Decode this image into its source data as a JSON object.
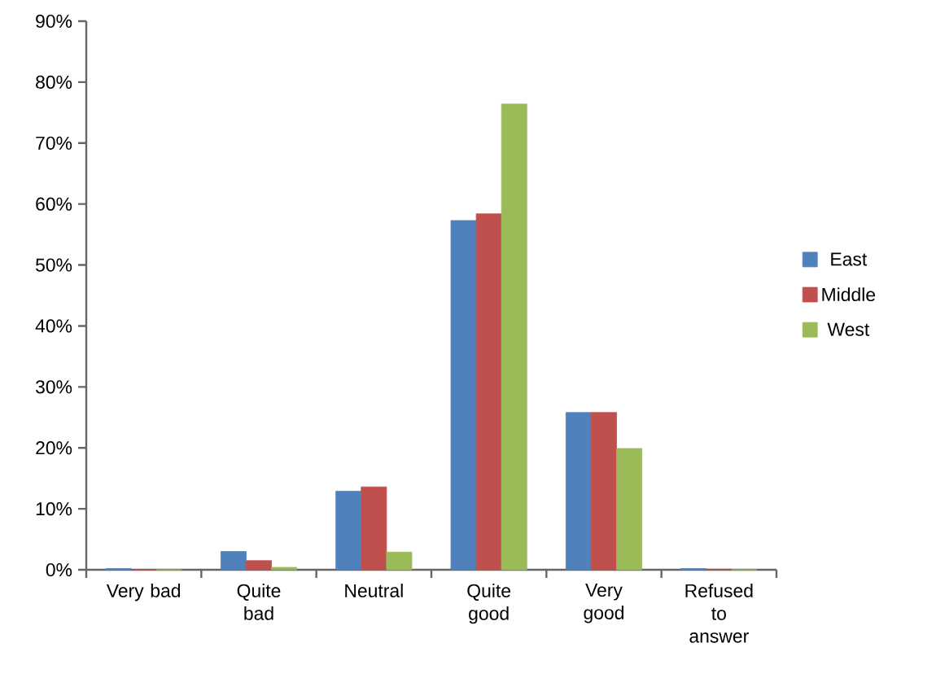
{
  "chart_data": {
    "type": "bar",
    "categories": [
      "Very bad",
      "Quite bad",
      "Neutral",
      "Quite good",
      "Very good",
      "Refused to answer"
    ],
    "series": [
      {
        "name": "East",
        "color": "#4f81bd",
        "values": [
          0.2,
          3.0,
          12.9,
          57.3,
          25.8,
          0.2
        ]
      },
      {
        "name": "Middle",
        "color": "#c0504d",
        "values": [
          0,
          1.5,
          13.6,
          58.4,
          25.8,
          0.1
        ]
      },
      {
        "name": "West",
        "color": "#9bbb59",
        "values": [
          0,
          0.4,
          2.9,
          76.4,
          19.9,
          0
        ]
      }
    ],
    "ylim": [
      0,
      90
    ],
    "yticks": [
      {
        "value": 0,
        "label": "0%"
      },
      {
        "value": 10,
        "label": "10%"
      },
      {
        "value": 20,
        "label": "20%"
      },
      {
        "value": 30,
        "label": "30%"
      },
      {
        "value": 40,
        "label": "40%"
      },
      {
        "value": 50,
        "label": "50%"
      },
      {
        "value": 60,
        "label": "60%"
      },
      {
        "value": 70,
        "label": "70%"
      },
      {
        "value": 80,
        "label": "80%"
      },
      {
        "value": 90,
        "label": "90%"
      }
    ],
    "grid": false,
    "legend": "right"
  }
}
